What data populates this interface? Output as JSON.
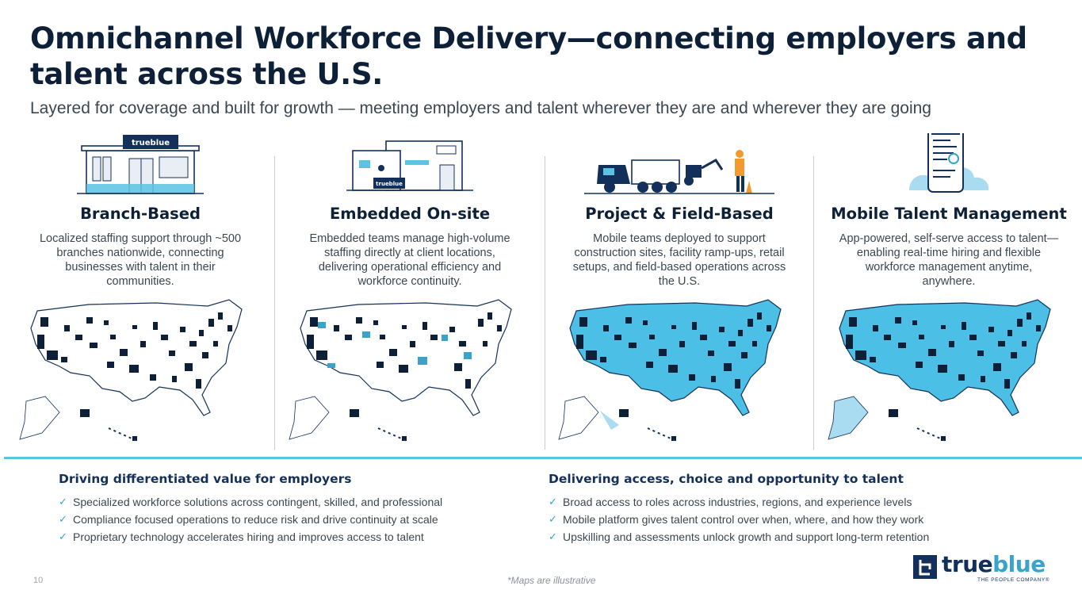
{
  "slide": {
    "title": "Omnichannel Workforce Delivery—connecting employers and talent across the U.S.",
    "subtitle": "Layered for coverage and built for growth — meeting employers and talent wherever they are and wherever they are going"
  },
  "columns": [
    {
      "heading": "Branch-Based",
      "description": "Localized staffing support through ~500 branches nationwide, connecting businesses with talent in their communities.",
      "sign_text": "trueblue"
    },
    {
      "heading": "Embedded On-site",
      "description": "Embedded teams manage high-volume staffing directly at client locations, delivering operational efficiency and workforce continuity.",
      "sign_text": "trueblue"
    },
    {
      "heading": "Project & Field-Based",
      "description": "Mobile teams deployed to support construction sites, facility ramp-ups, retail setups, and field-based operations across the U.S."
    },
    {
      "heading": "Mobile Talent Management",
      "description": "App-powered, self-serve access to talent—enabling real-time hiring and flexible workforce management anytime, anywhere."
    }
  ],
  "value_props": {
    "employers": {
      "heading": "Driving differentiated value for employers",
      "items": [
        "Specialized workforce solutions across contingent, skilled, and professional",
        "Compliance focused operations to reduce risk and drive continuity at scale",
        "Proprietary technology accelerates hiring and improves access to talent"
      ]
    },
    "talent": {
      "heading": "Delivering access, choice and opportunity to talent",
      "items": [
        "Broad access to roles across industries, regions, and experience levels",
        "Mobile platform gives talent control over when, where, and how they work",
        "Upskilling and assessments unlock growth and support long-term retention"
      ]
    }
  },
  "footer": {
    "page_number": "10",
    "footnote": "*Maps are illustrative"
  },
  "logo": {
    "word_part1": "true",
    "word_part2": "blue",
    "tagline": "THE PEOPLE COMPANY®"
  },
  "colors": {
    "navy": "#13305a",
    "dark": "#0d2038",
    "accent": "#5bc3e3",
    "map_fill": "#4cbfe6",
    "map_light": "#a9dcf0"
  },
  "icons": {
    "check": "✓"
  }
}
